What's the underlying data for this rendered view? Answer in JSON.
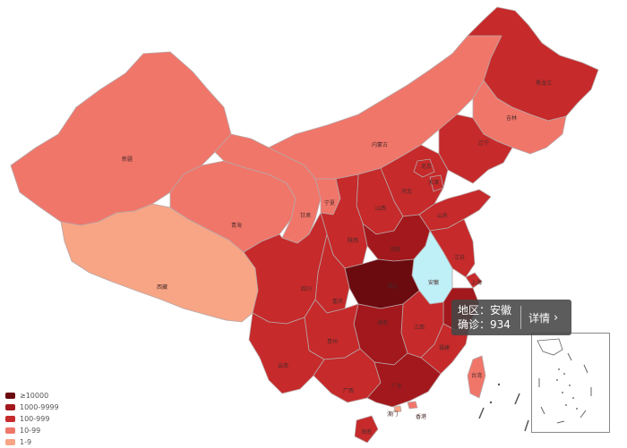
{
  "map": {
    "provinces": [
      {
        "id": "xinjiang",
        "name": "新疆",
        "level": "10-99"
      },
      {
        "id": "xizang",
        "name": "西藏",
        "level": "1-9"
      },
      {
        "id": "qinghai",
        "name": "青海",
        "level": "10-99"
      },
      {
        "id": "gansu",
        "name": "甘肃",
        "level": "10-99"
      },
      {
        "id": "neimenggu",
        "name": "内蒙古",
        "level": "10-99"
      },
      {
        "id": "ningxia",
        "name": "宁夏",
        "level": "10-99"
      },
      {
        "id": "heilongjiang",
        "name": "黑龙江",
        "level": "100-999"
      },
      {
        "id": "jilin",
        "name": "吉林",
        "level": "10-99"
      },
      {
        "id": "liaoning",
        "name": "辽宁",
        "level": "100-999"
      },
      {
        "id": "beijing",
        "name": "北京",
        "level": "100-999"
      },
      {
        "id": "tianjin",
        "name": "天津",
        "level": "100-999"
      },
      {
        "id": "hebei",
        "name": "河北",
        "level": "100-999"
      },
      {
        "id": "shanxi",
        "name": "山西",
        "level": "100-999"
      },
      {
        "id": "shandong",
        "name": "山东",
        "level": "100-999"
      },
      {
        "id": "shaanxi",
        "name": "陕西",
        "level": "100-999"
      },
      {
        "id": "henan",
        "name": "河南",
        "level": "1000-9999"
      },
      {
        "id": "jiangsu",
        "name": "江苏",
        "level": "100-999"
      },
      {
        "id": "anhui",
        "name": "安徽",
        "level": "selected"
      },
      {
        "id": "shanghai",
        "name": "上海",
        "level": "100-999"
      },
      {
        "id": "hubei",
        "name": "湖北",
        "level": "≥10000"
      },
      {
        "id": "sichuan",
        "name": "四川",
        "level": "100-999"
      },
      {
        "id": "chongqing",
        "name": "重庆",
        "level": "100-999"
      },
      {
        "id": "zhejiang",
        "name": "浙江",
        "level": "1000-9999"
      },
      {
        "id": "hunan",
        "name": "湖南",
        "level": "1000-9999"
      },
      {
        "id": "jiangxi",
        "name": "江西",
        "level": "100-999"
      },
      {
        "id": "guizhou",
        "name": "贵州",
        "level": "100-999"
      },
      {
        "id": "yunnan",
        "name": "云南",
        "level": "100-999"
      },
      {
        "id": "fujian",
        "name": "福建",
        "level": "100-999"
      },
      {
        "id": "guangxi",
        "name": "广西",
        "level": "100-999"
      },
      {
        "id": "guangdong",
        "name": "广东",
        "level": "1000-9999"
      },
      {
        "id": "taiwan",
        "name": "台湾",
        "level": "10-99"
      },
      {
        "id": "hongkong",
        "name": "香港",
        "level": "10-99"
      },
      {
        "id": "macau",
        "name": "澳门",
        "level": "1-9"
      },
      {
        "id": "hainan",
        "name": "海南",
        "level": "100-999"
      }
    ],
    "colors": {
      "≥10000": "#6b0a0f",
      "1000-9999": "#a3181c",
      "100-999": "#c62a2b",
      "10-99": "#f0766a",
      "1-9": "#f7a585",
      "selected": "#bff0f7"
    }
  },
  "legend": {
    "items": [
      {
        "label": "≥10000",
        "color": "#6b0a0f"
      },
      {
        "label": "1000-9999",
        "color": "#a3181c"
      },
      {
        "label": "100-999",
        "color": "#c62a2b"
      },
      {
        "label": "10-99",
        "color": "#f0766a"
      },
      {
        "label": "1-9",
        "color": "#f7a585"
      }
    ]
  },
  "tooltip": {
    "region_line": "地区：安徽",
    "confirmed_line": "确诊：934",
    "detail_label": "详情",
    "chevron": "›"
  }
}
